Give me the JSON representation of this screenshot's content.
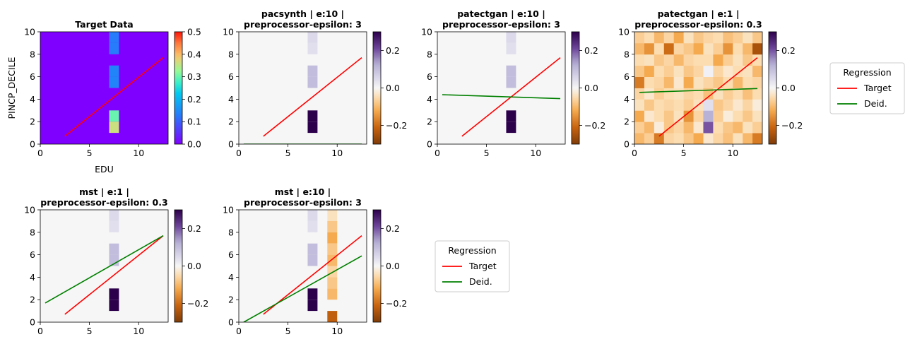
{
  "colors": {
    "target_line": "#ff0000",
    "deid_line": "#008000",
    "target_colormap": "rainbow",
    "diff_colormap": "PuOr"
  },
  "legend": {
    "title": "Regression",
    "entries": [
      "Target",
      "Deid."
    ]
  },
  "chart_data": [
    {
      "id": "target",
      "type": "heatmap",
      "title": [
        "Target Data"
      ],
      "xlabel": "EDU",
      "ylabel": "PINCP_DECILE",
      "xlim": [
        0,
        13
      ],
      "ylim": [
        0,
        10
      ],
      "xticks": [
        "0",
        "5",
        "10"
      ],
      "yticks": [
        "0",
        "2",
        "4",
        "6",
        "8",
        "10"
      ],
      "colormap": "rainbow",
      "clim": [
        0,
        0.5
      ],
      "colorbar_ticks": [
        "0.0",
        "0.1",
        "0.2",
        "0.3",
        "0.4",
        "0.5"
      ],
      "background_value": 0,
      "cells": [
        {
          "x": [
            7,
            8
          ],
          "y": [
            9,
            10
          ],
          "v": 0.13
        },
        {
          "x": [
            7,
            8
          ],
          "y": [
            8,
            9
          ],
          "v": 0.13
        },
        {
          "x": [
            7,
            8
          ],
          "y": [
            6,
            7
          ],
          "v": 0.14
        },
        {
          "x": [
            7,
            8
          ],
          "y": [
            5,
            6
          ],
          "v": 0.14
        },
        {
          "x": [
            7,
            8
          ],
          "y": [
            2,
            3
          ],
          "v": 0.3
        },
        {
          "x": [
            7,
            8
          ],
          "y": [
            1,
            2
          ],
          "v": 0.36
        }
      ],
      "series": [
        {
          "name": "Target",
          "x": [
            2.5,
            12.5
          ],
          "y": [
            0.7,
            7.7
          ]
        }
      ]
    },
    {
      "id": "pacsynth-e10",
      "type": "heatmap",
      "title": [
        "pacsynth | e:10 |",
        "preprocessor-epsilon: 3"
      ],
      "xlim": [
        0,
        13
      ],
      "ylim": [
        0,
        10
      ],
      "xticks": [
        "0",
        "5",
        "10"
      ],
      "yticks": [
        "0",
        "2",
        "4",
        "6",
        "8",
        "10"
      ],
      "colormap": "PuOr",
      "clim": [
        -0.3,
        0.3
      ],
      "colorbar_ticks": [
        "0.2",
        "0.0",
        "−0.2"
      ],
      "background_value": 0,
      "cells": [
        {
          "x": [
            7,
            8
          ],
          "y": [
            9,
            10
          ],
          "v": 0.05
        },
        {
          "x": [
            7,
            8
          ],
          "y": [
            8,
            9
          ],
          "v": 0.04
        },
        {
          "x": [
            7,
            8
          ],
          "y": [
            6,
            7
          ],
          "v": 0.1
        },
        {
          "x": [
            7,
            8
          ],
          "y": [
            5,
            6
          ],
          "v": 0.1
        },
        {
          "x": [
            7,
            8
          ],
          "y": [
            2,
            3
          ],
          "v": 0.3
        },
        {
          "x": [
            7,
            8
          ],
          "y": [
            1,
            2
          ],
          "v": 0.3
        }
      ],
      "series": [
        {
          "name": "Target",
          "x": [
            2.5,
            12.5
          ],
          "y": [
            0.7,
            7.7
          ]
        },
        {
          "name": "Deid.",
          "x": [
            0.5,
            12.5
          ],
          "y": [
            0.0,
            0.0
          ]
        }
      ]
    },
    {
      "id": "patectgan-e10",
      "type": "heatmap",
      "title": [
        "patectgan | e:10 |",
        "preprocessor-epsilon: 3"
      ],
      "xlim": [
        0,
        13
      ],
      "ylim": [
        0,
        10
      ],
      "xticks": [
        "0",
        "5",
        "10"
      ],
      "yticks": [
        "0",
        "2",
        "4",
        "6",
        "8",
        "10"
      ],
      "colormap": "PuOr",
      "clim": [
        -0.3,
        0.3
      ],
      "colorbar_ticks": [
        "0.2",
        "0.0",
        "−0.2"
      ],
      "background_value": 0,
      "cells": [
        {
          "x": [
            7,
            8
          ],
          "y": [
            9,
            10
          ],
          "v": 0.05
        },
        {
          "x": [
            7,
            8
          ],
          "y": [
            8,
            9
          ],
          "v": 0.04
        },
        {
          "x": [
            7,
            8
          ],
          "y": [
            6,
            7
          ],
          "v": 0.1
        },
        {
          "x": [
            7,
            8
          ],
          "y": [
            5,
            6
          ],
          "v": 0.1
        },
        {
          "x": [
            7,
            8
          ],
          "y": [
            2,
            3
          ],
          "v": 0.3
        },
        {
          "x": [
            7,
            8
          ],
          "y": [
            1,
            2
          ],
          "v": 0.3
        }
      ],
      "series": [
        {
          "name": "Target",
          "x": [
            2.5,
            12.5
          ],
          "y": [
            0.7,
            7.7
          ]
        },
        {
          "name": "Deid.",
          "x": [
            0.5,
            12.5
          ],
          "y": [
            4.4,
            4.05
          ]
        }
      ]
    },
    {
      "id": "patectgan-e1",
      "type": "heatmap",
      "title": [
        "patectgan | e:1 |",
        "preprocessor-epsilon: 0.3"
      ],
      "xlim": [
        0,
        13
      ],
      "ylim": [
        0,
        10
      ],
      "xticks": [
        "0",
        "5",
        "10"
      ],
      "yticks": [
        "0",
        "2",
        "4",
        "6",
        "8",
        "10"
      ],
      "colormap": "PuOr",
      "clim": [
        -0.3,
        0.3
      ],
      "colorbar_ticks": [
        "0.2",
        "0.0",
        "−0.2"
      ],
      "background_value": 0,
      "grid_values": [
        [
          -0.1,
          -0.07,
          -0.18,
          -0.06,
          -0.05,
          -0.08,
          -0.12,
          -0.03,
          -0.06,
          -0.09,
          -0.04,
          -0.1,
          -0.18
        ],
        [
          -0.07,
          -0.1,
          -0.02,
          -0.08,
          -0.06,
          -0.1,
          -0.03,
          0.2,
          -0.05,
          -0.08,
          -0.1,
          -0.04,
          -0.07
        ],
        [
          -0.12,
          -0.03,
          -0.05,
          -0.08,
          -0.04,
          -0.15,
          -0.06,
          0.12,
          -0.07,
          -0.02,
          -0.05,
          -0.08,
          -0.04
        ],
        [
          -0.04,
          -0.08,
          -0.05,
          -0.06,
          -0.05,
          -0.07,
          -0.04,
          0.04,
          -0.08,
          -0.06,
          -0.03,
          -0.06,
          -0.02
        ],
        [
          -0.06,
          -0.03,
          -0.07,
          -0.05,
          -0.04,
          -0.06,
          -0.05,
          -0.09,
          -0.04,
          -0.07,
          -0.05,
          -0.09,
          -0.05
        ],
        [
          -0.18,
          -0.05,
          -0.06,
          -0.1,
          -0.03,
          -0.12,
          -0.04,
          -0.06,
          -0.08,
          -0.05,
          -0.1,
          -0.05,
          -0.06
        ],
        [
          -0.08,
          -0.12,
          -0.05,
          -0.07,
          -0.04,
          -0.08,
          -0.06,
          0.01,
          -0.06,
          -0.03,
          -0.05,
          -0.04,
          -0.1
        ],
        [
          -0.05,
          -0.04,
          -0.08,
          -0.06,
          -0.1,
          -0.06,
          -0.05,
          -0.05,
          -0.12,
          -0.07,
          -0.04,
          -0.08,
          -0.05
        ],
        [
          -0.1,
          -0.15,
          -0.05,
          -0.2,
          -0.06,
          -0.08,
          -0.12,
          -0.04,
          -0.07,
          -0.15,
          -0.05,
          -0.1,
          -0.25
        ],
        [
          -0.07,
          -0.05,
          -0.1,
          -0.06,
          -0.12,
          -0.04,
          -0.08,
          -0.06,
          -0.05,
          -0.09,
          -0.07,
          -0.04,
          -0.08
        ]
      ],
      "series": [
        {
          "name": "Target",
          "x": [
            2.5,
            12.5
          ],
          "y": [
            0.7,
            7.7
          ]
        },
        {
          "name": "Deid.",
          "x": [
            0.5,
            12.5
          ],
          "y": [
            4.6,
            4.95
          ]
        }
      ]
    },
    {
      "id": "mst-e1",
      "type": "heatmap",
      "title": [
        "mst | e:1 |",
        "preprocessor-epsilon: 0.3"
      ],
      "xlim": [
        0,
        13
      ],
      "ylim": [
        0,
        10
      ],
      "xticks": [
        "0",
        "5",
        "10"
      ],
      "yticks": [
        "0",
        "2",
        "4",
        "6",
        "8",
        "10"
      ],
      "colormap": "PuOr",
      "clim": [
        -0.3,
        0.3
      ],
      "colorbar_ticks": [
        "0.2",
        "0.0",
        "−0.2"
      ],
      "background_value": 0,
      "cells": [
        {
          "x": [
            7,
            8
          ],
          "y": [
            9,
            10
          ],
          "v": 0.05
        },
        {
          "x": [
            7,
            8
          ],
          "y": [
            8,
            9
          ],
          "v": 0.04
        },
        {
          "x": [
            7,
            8
          ],
          "y": [
            6,
            7
          ],
          "v": 0.1
        },
        {
          "x": [
            7,
            8
          ],
          "y": [
            5,
            6
          ],
          "v": 0.1
        },
        {
          "x": [
            7,
            8
          ],
          "y": [
            2,
            3
          ],
          "v": 0.3
        },
        {
          "x": [
            7,
            8
          ],
          "y": [
            1,
            2
          ],
          "v": 0.3
        }
      ],
      "series": [
        {
          "name": "Target",
          "x": [
            2.5,
            12.5
          ],
          "y": [
            0.7,
            7.7
          ]
        },
        {
          "name": "Deid.",
          "x": [
            0.5,
            12.5
          ],
          "y": [
            1.7,
            7.7
          ]
        }
      ]
    },
    {
      "id": "mst-e10",
      "type": "heatmap",
      "title": [
        "mst | e:10 |",
        "preprocessor-epsilon: 3"
      ],
      "xlim": [
        0,
        13
      ],
      "ylim": [
        0,
        10
      ],
      "xticks": [
        "0",
        "5",
        "10"
      ],
      "yticks": [
        "0",
        "2",
        "4",
        "6",
        "8",
        "10"
      ],
      "colormap": "PuOr",
      "clim": [
        -0.3,
        0.3
      ],
      "colorbar_ticks": [
        "0.2",
        "0.0",
        "−0.2"
      ],
      "background_value": 0,
      "cells": [
        {
          "x": [
            7,
            8
          ],
          "y": [
            9,
            10
          ],
          "v": 0.05
        },
        {
          "x": [
            7,
            8
          ],
          "y": [
            8,
            9
          ],
          "v": 0.04
        },
        {
          "x": [
            7,
            8
          ],
          "y": [
            6,
            7
          ],
          "v": 0.1
        },
        {
          "x": [
            7,
            8
          ],
          "y": [
            5,
            6
          ],
          "v": 0.1
        },
        {
          "x": [
            7,
            8
          ],
          "y": [
            2,
            3
          ],
          "v": 0.3
        },
        {
          "x": [
            7,
            8
          ],
          "y": [
            1,
            2
          ],
          "v": 0.3
        },
        {
          "x": [
            9,
            10
          ],
          "y": [
            9,
            10
          ],
          "v": -0.04
        },
        {
          "x": [
            9,
            10
          ],
          "y": [
            8,
            9
          ],
          "v": -0.08
        },
        {
          "x": [
            9,
            10
          ],
          "y": [
            7,
            8
          ],
          "v": -0.12
        },
        {
          "x": [
            9,
            10
          ],
          "y": [
            6,
            7
          ],
          "v": -0.08
        },
        {
          "x": [
            9,
            10
          ],
          "y": [
            5,
            6
          ],
          "v": -0.1
        },
        {
          "x": [
            9,
            10
          ],
          "y": [
            4,
            5
          ],
          "v": -0.06
        },
        {
          "x": [
            9,
            10
          ],
          "y": [
            3,
            4
          ],
          "v": -0.08
        },
        {
          "x": [
            9,
            10
          ],
          "y": [
            2,
            3
          ],
          "v": -0.1
        },
        {
          "x": [
            9,
            10
          ],
          "y": [
            0,
            1
          ],
          "v": -0.22
        }
      ],
      "series": [
        {
          "name": "Target",
          "x": [
            2.5,
            12.5
          ],
          "y": [
            0.7,
            7.7
          ]
        },
        {
          "name": "Deid.",
          "x": [
            0.5,
            12.5
          ],
          "y": [
            0.0,
            5.9
          ]
        }
      ]
    }
  ]
}
